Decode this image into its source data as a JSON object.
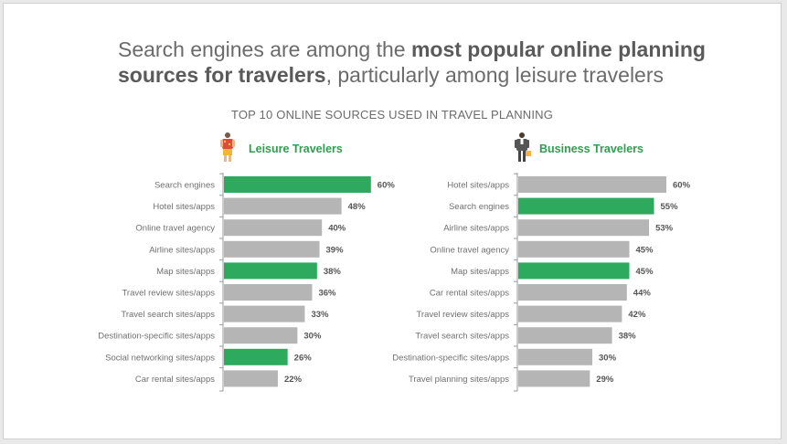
{
  "header": {
    "title_part1": "Search engines are among the ",
    "title_bold1": "most popular online planning",
    "title_bold2": "sources for travelers",
    "title_part2": ", particularly among leisure travelers",
    "subtitle": "TOP 10 ONLINE SOURCES USED IN TRAVEL PLANNING"
  },
  "colors": {
    "highlight": "#2eaa5f",
    "default": "#b5b5b5",
    "heading": "#2e9e4f",
    "axis": "#9a9a9a"
  },
  "chart_data": [
    {
      "type": "bar",
      "orientation": "horizontal",
      "title": "Leisure Travelers",
      "icon": "leisure-traveler-icon",
      "categories": [
        "Search engines",
        "Hotel sites/apps",
        "Online travel agency",
        "Airline sites/apps",
        "Map sites/apps",
        "Travel review sites/apps",
        "Travel search sites/apps",
        "Destination-specific sites/apps",
        "Social networking sites/apps",
        "Car rental sites/apps"
      ],
      "values": [
        60,
        48,
        40,
        39,
        38,
        36,
        33,
        30,
        26,
        22
      ],
      "value_labels": [
        "60%",
        "48%",
        "40%",
        "39%",
        "38%",
        "36%",
        "33%",
        "30%",
        "26%",
        "22%"
      ],
      "highlighted": [
        "Search engines",
        "Map sites/apps",
        "Social networking sites/apps"
      ],
      "xlim": [
        0,
        100
      ]
    },
    {
      "type": "bar",
      "orientation": "horizontal",
      "title": "Business Travelers",
      "icon": "business-traveler-icon",
      "categories": [
        "Hotel sites/apps",
        "Search engines",
        "Airline sites/apps",
        "Online travel agency",
        "Map sites/apps",
        "Car rental sites/apps",
        "Travel review sites/apps",
        "Travel search sites/apps",
        "Destination-specific sites/apps",
        "Travel planning sites/apps"
      ],
      "values": [
        60,
        55,
        53,
        45,
        45,
        44,
        42,
        38,
        30,
        29
      ],
      "value_labels": [
        "60%",
        "55%",
        "53%",
        "45%",
        "45%",
        "44%",
        "42%",
        "38%",
        "30%",
        "29%"
      ],
      "highlighted": [
        "Search engines",
        "Map sites/apps"
      ],
      "xlim": [
        0,
        100
      ]
    }
  ]
}
